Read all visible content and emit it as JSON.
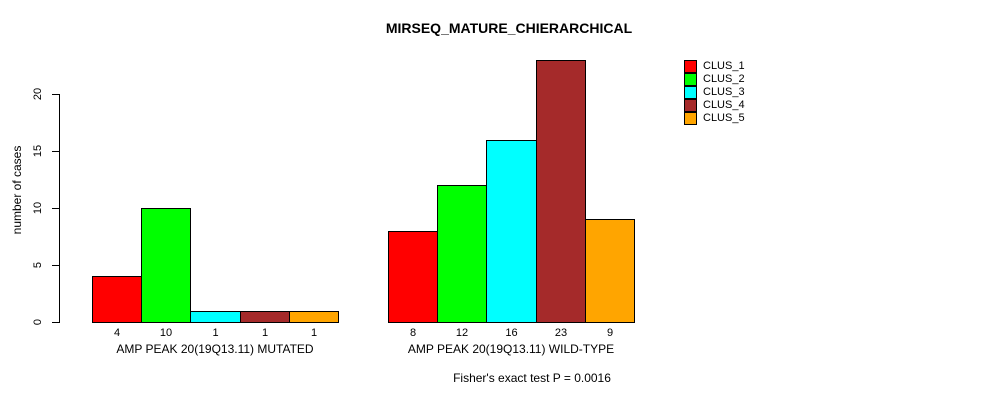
{
  "chart_data": {
    "type": "bar",
    "title": "MIRSEQ_MATURE_CHIERARCHICAL",
    "ylabel": "number of cases",
    "xlabel": "",
    "annotation": "Fisher's exact test P = 0.0016",
    "ylim": [
      0,
      23
    ],
    "yticks": [
      0,
      5,
      10,
      15,
      20
    ],
    "grid": false,
    "legend_position": "top-right",
    "categories": [
      "AMP PEAK 20(19Q13.11) MUTATED",
      "AMP PEAK 20(19Q13.11) WILD-TYPE"
    ],
    "series": [
      {
        "name": "CLUS_1",
        "color": "#FF0000",
        "values": [
          4,
          8
        ]
      },
      {
        "name": "CLUS_2",
        "color": "#00FF00",
        "values": [
          10,
          12
        ]
      },
      {
        "name": "CLUS_3",
        "color": "#00FFFF",
        "values": [
          1,
          16
        ]
      },
      {
        "name": "CLUS_4",
        "color": "#A52A2A",
        "values": [
          1,
          23
        ]
      },
      {
        "name": "CLUS_5",
        "color": "#FFA500",
        "values": [
          1,
          9
        ]
      }
    ],
    "bar_value_labels": [
      [
        4,
        10,
        1,
        1,
        1
      ],
      [
        8,
        12,
        16,
        23,
        9
      ]
    ]
  }
}
